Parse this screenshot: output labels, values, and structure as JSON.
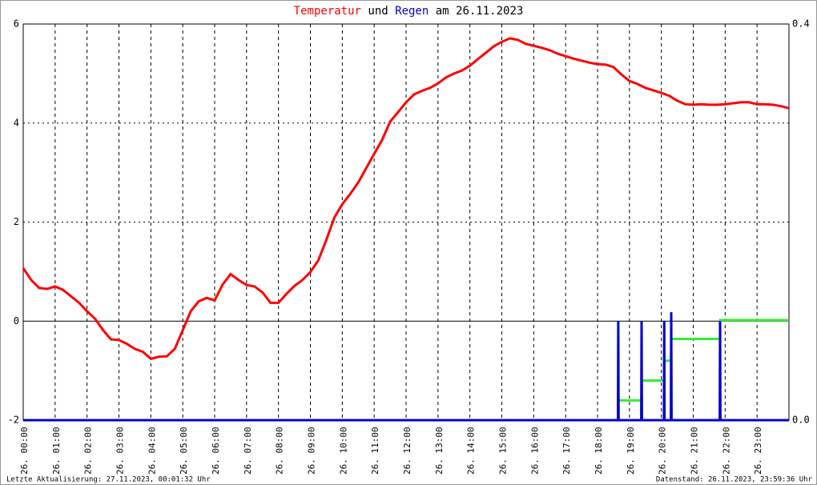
{
  "chart_data": {
    "type": "line",
    "title_words": [
      "und",
      "am 26.11.2023"
    ],
    "footer_left": "Letzte Aktualisierung: 27.11.2023, 00:01:32 Uhr",
    "footer_right": "Datenstand: 26.11.2023, 23:59:36 Uhr",
    "xlim": [
      0,
      24
    ],
    "xticks": [
      {
        "value": 0,
        "label": "26. 00:00"
      },
      {
        "value": 1,
        "label": "26. 01:00"
      },
      {
        "value": 2,
        "label": "26. 02:00"
      },
      {
        "value": 3,
        "label": "26. 03:00"
      },
      {
        "value": 4,
        "label": "26. 04:00"
      },
      {
        "value": 5,
        "label": "26. 05:00"
      },
      {
        "value": 6,
        "label": "26. 06:00"
      },
      {
        "value": 7,
        "label": "26. 07:00"
      },
      {
        "value": 8,
        "label": "26. 08:00"
      },
      {
        "value": 9,
        "label": "26. 09:00"
      },
      {
        "value": 10,
        "label": "26. 10:00"
      },
      {
        "value": 11,
        "label": "26. 11:00"
      },
      {
        "value": 12,
        "label": "26. 12:00"
      },
      {
        "value": 13,
        "label": "26. 13:00"
      },
      {
        "value": 14,
        "label": "26. 14:00"
      },
      {
        "value": 15,
        "label": "26. 15:00"
      },
      {
        "value": 16,
        "label": "26. 16:00"
      },
      {
        "value": 17,
        "label": "26. 17:00"
      },
      {
        "value": 18,
        "label": "26. 18:00"
      },
      {
        "value": 19,
        "label": "26. 19:00"
      },
      {
        "value": 20,
        "label": "26. 20:00"
      },
      {
        "value": 21,
        "label": "26. 21:00"
      },
      {
        "value": 22,
        "label": "26. 22:00"
      },
      {
        "value": 23,
        "label": "26. 23:00"
      }
    ],
    "ylim": [
      -2,
      6
    ],
    "yticks": [
      -2,
      0,
      2,
      4,
      6
    ],
    "y2lim": [
      0,
      0.4
    ],
    "y2ticks": [
      {
        "value": 0,
        "label": "0.0"
      },
      0.4
    ],
    "grid": true,
    "series": [
      {
        "name": "Temperatur",
        "color": "#ff0000",
        "x": [
          0,
          0.25,
          0.5,
          0.75,
          1,
          1.25,
          1.5,
          1.75,
          2,
          2.25,
          2.5,
          2.75,
          3,
          3.25,
          3.5,
          3.75,
          4,
          4.25,
          4.5,
          4.75,
          5,
          5.25,
          5.5,
          5.75,
          6,
          6.25,
          6.5,
          6.75,
          7,
          7.25,
          7.5,
          7.75,
          8,
          8.25,
          8.5,
          8.75,
          9,
          9.25,
          9.5,
          9.75,
          10,
          10.25,
          10.5,
          10.75,
          11,
          11.25,
          11.5,
          11.75,
          12,
          12.25,
          12.5,
          12.75,
          13,
          13.25,
          13.5,
          13.75,
          14,
          14.25,
          14.5,
          14.75,
          15,
          15.25,
          15.5,
          15.75,
          16,
          16.25,
          16.5,
          16.75,
          17,
          17.25,
          17.5,
          17.75,
          18,
          18.25,
          18.5,
          18.75,
          19,
          19.25,
          19.5,
          19.75,
          20,
          20.25,
          20.5,
          20.75,
          21,
          21.25,
          21.5,
          21.75,
          22,
          22.25,
          22.5,
          22.75,
          23,
          23.25,
          23.5,
          23.75,
          24
        ],
        "values": [
          1.07,
          0.83,
          0.67,
          0.65,
          0.7,
          0.63,
          0.5,
          0.37,
          0.2,
          0.05,
          -0.18,
          -0.37,
          -0.38,
          -0.46,
          -0.56,
          -0.62,
          -0.76,
          -0.72,
          -0.71,
          -0.56,
          -0.18,
          0.2,
          0.4,
          0.47,
          0.42,
          0.74,
          0.95,
          0.83,
          0.73,
          0.7,
          0.58,
          0.37,
          0.37,
          0.55,
          0.71,
          0.83,
          0.99,
          1.23,
          1.64,
          2.09,
          2.36,
          2.57,
          2.8,
          3.09,
          3.38,
          3.66,
          4.03,
          4.22,
          4.42,
          4.58,
          4.65,
          4.71,
          4.8,
          4.92,
          5.0,
          5.06,
          5.16,
          5.29,
          5.42,
          5.55,
          5.64,
          5.71,
          5.68,
          5.6,
          5.56,
          5.52,
          5.47,
          5.4,
          5.35,
          5.3,
          5.26,
          5.22,
          5.19,
          5.18,
          5.13,
          4.98,
          4.85,
          4.79,
          4.71,
          4.66,
          4.61,
          4.55,
          4.45,
          4.38,
          4.37,
          4.38,
          4.37,
          4.37,
          4.38,
          4.4,
          4.42,
          4.42,
          4.38,
          4.38,
          4.37,
          4.34,
          4.3
        ]
      },
      {
        "color": "#33ee33",
        "axis": "y2",
        "x": [
          0,
          18.65,
          18.65,
          19.38,
          19.38,
          20.09,
          20.09,
          20.31,
          20.31,
          21.84,
          21.84,
          24
        ],
        "values": [
          0,
          0,
          0.02,
          0.02,
          0.04,
          0.04,
          0.06,
          0.06,
          0.082,
          0.082,
          0.101,
          0.101
        ]
      },
      {
        "name": "Regen",
        "color": "#0000cc",
        "axis": "y2",
        "x": [
          0,
          18.64,
          18.65,
          18.66,
          19.37,
          19.38,
          19.39,
          20.08,
          20.09,
          20.1,
          20.3,
          20.31,
          20.32,
          21.83,
          21.84,
          21.85,
          24
        ],
        "values": [
          0,
          0,
          0.1,
          0,
          0,
          0.1,
          0,
          0,
          0.1,
          0,
          0,
          0.109,
          0,
          0,
          0.1,
          0,
          0
        ]
      }
    ]
  }
}
